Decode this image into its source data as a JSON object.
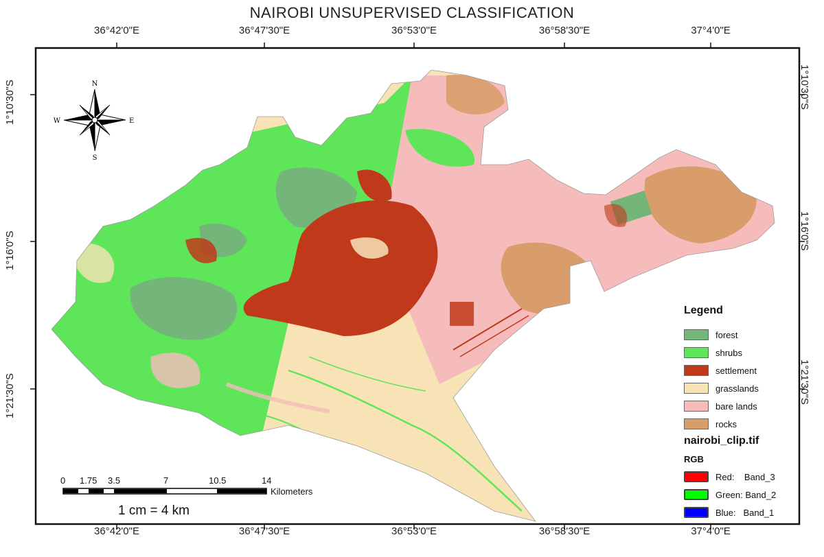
{
  "title": "NAIROBI UNSUPERVISED CLASSIFICATION",
  "top_ticks": [
    "36°42'0\"E",
    "36°47'30\"E",
    "36°53'0\"E",
    "36°58'30\"E",
    "37°4'0\"E"
  ],
  "bottom_ticks": [
    "36°42'0\"E",
    "36°47'30\"E",
    "36°53'0\"E",
    "36°58'30\"E",
    "37°4'0\"E"
  ],
  "left_ticks": [
    "1°10'30\"S",
    "1°16'0\"S",
    "1°21'30\"S"
  ],
  "right_ticks": [
    "1°10'30\"S",
    "1°16'0\"S",
    "1°21'30\"S"
  ],
  "compass": {
    "n": "N",
    "s": "S",
    "e": "E",
    "w": "W"
  },
  "legend": {
    "title": "Legend",
    "classes": [
      {
        "label": "forest",
        "color": "#74b57a"
      },
      {
        "label": "shrubs",
        "color": "#5ee55a"
      },
      {
        "label": "settlement",
        "color": "#c0391b"
      },
      {
        "label": "grasslands",
        "color": "#f7e3b6"
      },
      {
        "label": "bare lands",
        "color": "#f6bcbc"
      },
      {
        "label": "rocks",
        "color": "#d89d6a"
      }
    ],
    "raster_name": "nairobi_clip.tif",
    "rgb_title": "RGB",
    "bands": [
      {
        "label": "Red:    Band_3",
        "color": "#ff0000"
      },
      {
        "label": "Green: Band_2",
        "color": "#00ff00"
      },
      {
        "label": "Blue:   Band_1",
        "color": "#0000ff"
      }
    ]
  },
  "scale": {
    "ticks": [
      "0",
      "1.75",
      "3.5",
      "7",
      "10.5",
      "14"
    ],
    "unit": "Kilometers",
    "ratio": "1 cm = 4 km"
  }
}
